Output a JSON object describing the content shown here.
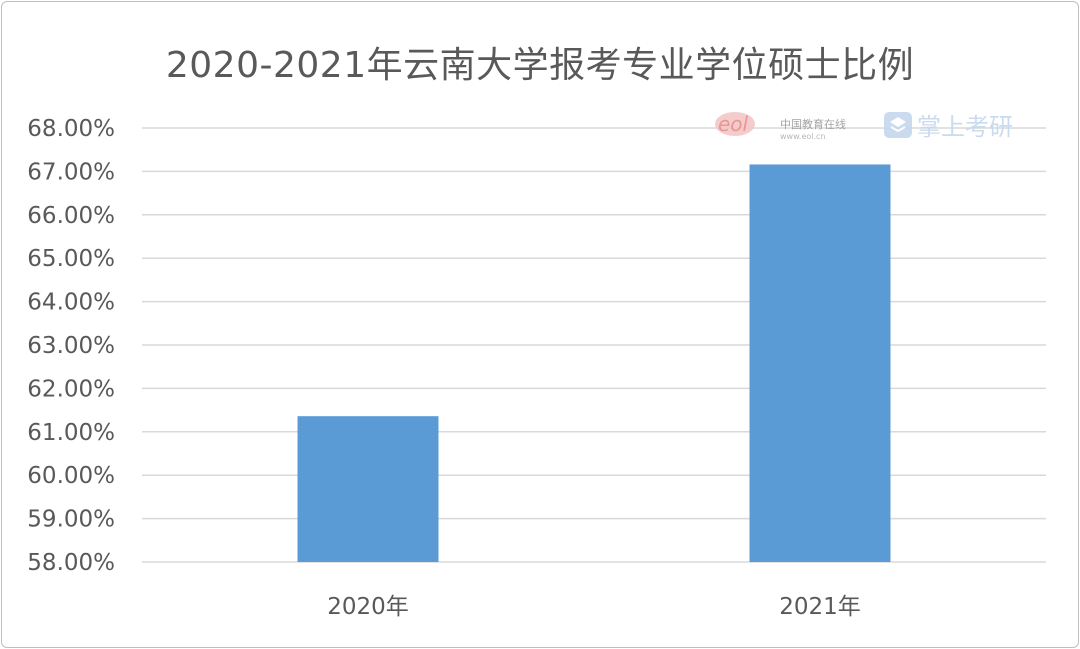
{
  "chart_data": {
    "type": "bar",
    "title": "2020-2021年云南大学报考专业学位硕士比例",
    "categories": [
      "2020年",
      "2021年"
    ],
    "values": [
      61.36,
      67.16
    ],
    "ylim": [
      58,
      68
    ],
    "ytick_step": 1,
    "ytick_labels": [
      "58.00%",
      "59.00%",
      "60.00%",
      "61.00%",
      "62.00%",
      "63.00%",
      "64.00%",
      "65.00%",
      "66.00%",
      "67.00%",
      "68.00%"
    ],
    "xlabel": "",
    "ylabel": "",
    "grid": true,
    "bar_color": "#5b9bd5"
  },
  "watermark": {
    "logo_text": "eol",
    "cn_text": "中国教育在线",
    "url_text": "www.eol.cn",
    "brand_text": "掌上考研"
  }
}
